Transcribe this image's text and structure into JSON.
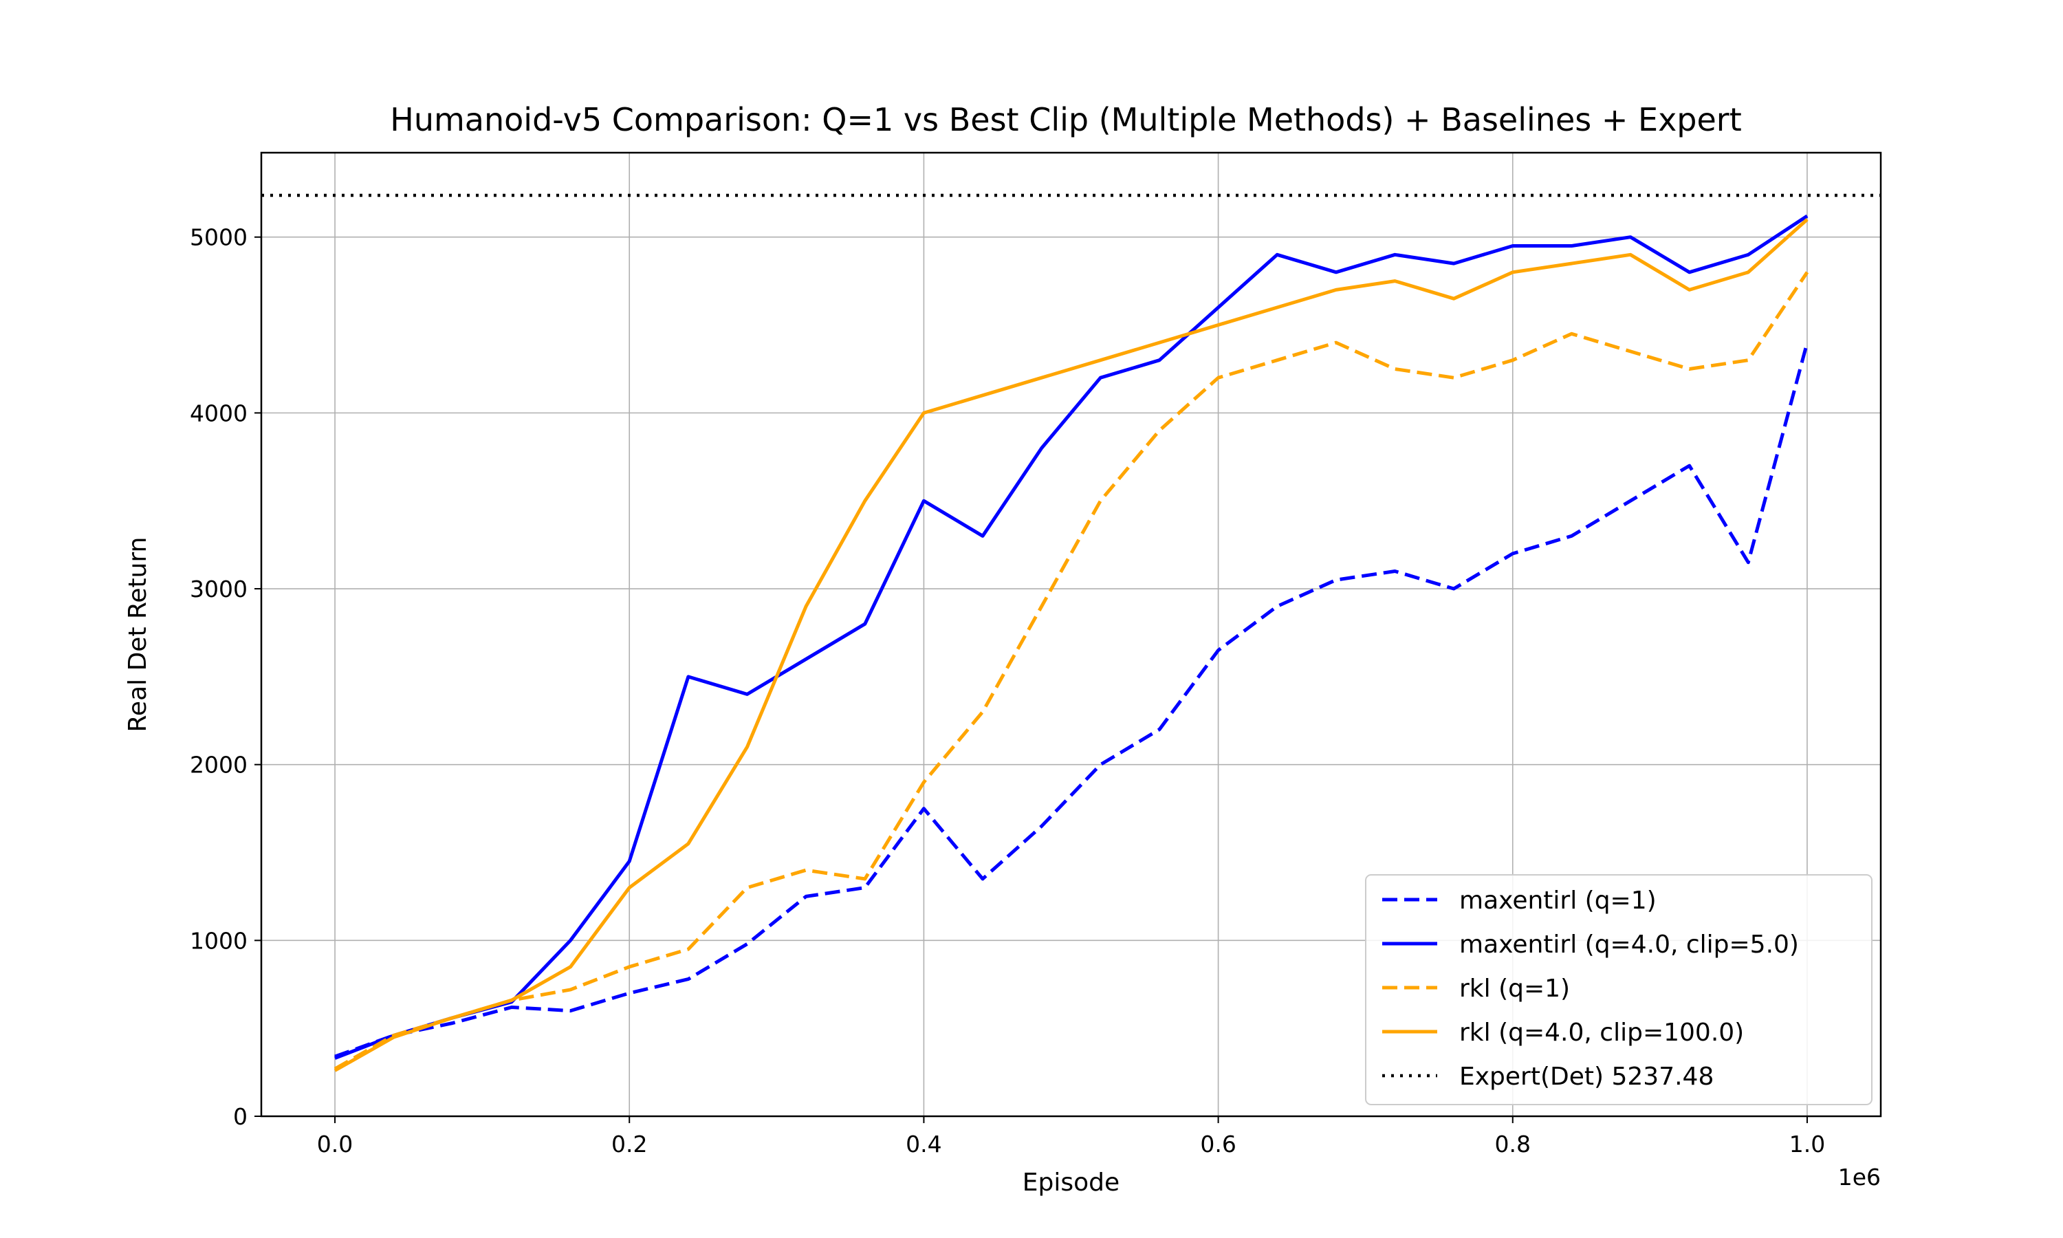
{
  "chart_data": {
    "type": "line",
    "title": "Humanoid-v5 Comparison: Q=1 vs Best Clip (Multiple Methods) + Baselines + Expert",
    "xlabel": "Episode",
    "ylabel": "Real Det Return",
    "x_offset_label": "1e6",
    "xlim": [
      -0.05,
      1.05
    ],
    "ylim": [
      0,
      5480
    ],
    "x_ticks": [
      0.0,
      0.2,
      0.4,
      0.6,
      0.8,
      1.0
    ],
    "x_tick_labels": [
      "0.0",
      "0.2",
      "0.4",
      "0.6",
      "0.8",
      "1.0"
    ],
    "y_ticks": [
      0,
      1000,
      2000,
      3000,
      4000,
      5000
    ],
    "y_tick_labels": [
      "0",
      "1000",
      "2000",
      "3000",
      "4000",
      "5000"
    ],
    "grid": true,
    "legend_position": "lower right",
    "x": [
      0.0,
      0.04,
      0.08,
      0.12,
      0.16,
      0.2,
      0.24,
      0.28,
      0.32,
      0.36,
      0.4,
      0.44,
      0.48,
      0.52,
      0.56,
      0.6,
      0.64,
      0.68,
      0.72,
      0.76,
      0.8,
      0.84,
      0.88,
      0.92,
      0.96,
      1.0
    ],
    "series": [
      {
        "name": "maxentirl (q=1)",
        "color": "#0000ff",
        "style": "dashed",
        "values": [
          340,
          460,
          530,
          620,
          600,
          700,
          780,
          980,
          1250,
          1300,
          1750,
          1350,
          1650,
          2000,
          2200,
          2650,
          2900,
          3050,
          3100,
          3000,
          3200,
          3300,
          3500,
          3700,
          3150,
          4400
        ]
      },
      {
        "name": "maxentirl (q=4.0, clip=5.0)",
        "color": "#0000ff",
        "style": "solid",
        "values": [
          330,
          460,
          560,
          650,
          1000,
          1450,
          2500,
          2400,
          2600,
          2800,
          3500,
          3300,
          3800,
          4200,
          4300,
          4600,
          4900,
          4800,
          4900,
          4850,
          4950,
          4950,
          5000,
          4800,
          4900,
          5120
        ]
      },
      {
        "name": "rkl (q=1)",
        "color": "#ffa500",
        "style": "dashed",
        "values": [
          270,
          460,
          560,
          660,
          720,
          850,
          950,
          1300,
          1400,
          1350,
          1900,
          2300,
          2900,
          3500,
          3900,
          4200,
          4300,
          4400,
          4250,
          4200,
          4300,
          4450,
          4350,
          4250,
          4300,
          4800
        ]
      },
      {
        "name": "rkl (q=4.0, clip=100.0)",
        "color": "#ffa500",
        "style": "solid",
        "values": [
          260,
          450,
          560,
          660,
          850,
          1300,
          1550,
          2100,
          2900,
          3500,
          4000,
          4100,
          4200,
          4300,
          4400,
          4500,
          4600,
          4700,
          4750,
          4650,
          4800,
          4850,
          4900,
          4700,
          4800,
          5100
        ]
      },
      {
        "name": "Expert(Det) 5237.48",
        "color": "#000000",
        "style": "dotted",
        "hline": 5237.48
      }
    ]
  }
}
